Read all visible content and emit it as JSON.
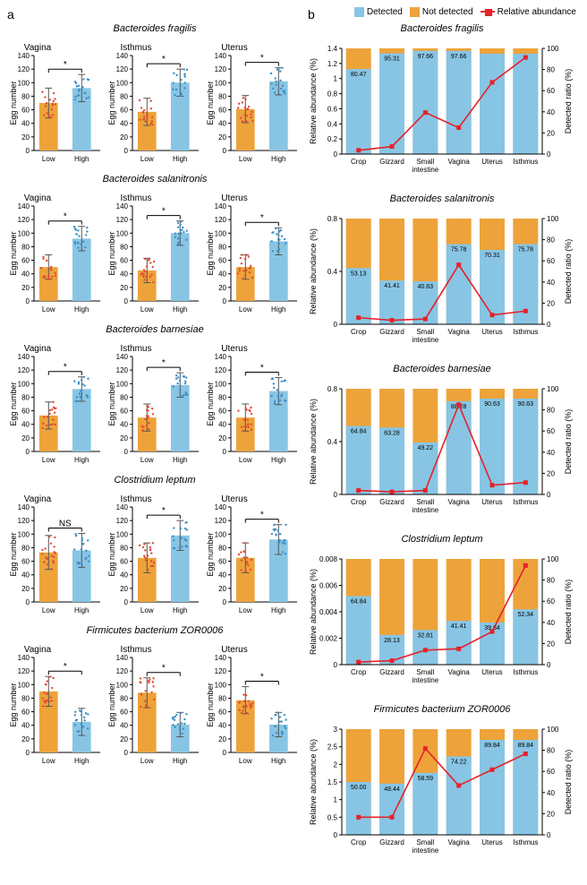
{
  "colors": {
    "low": "#eda33a",
    "high": "#88c5e4",
    "lowdot": "#e34a33",
    "highdot": "#3a8fc7",
    "detected": "#88c5e4",
    "notdetected": "#eda33a",
    "line": "#e62129",
    "axis": "#000000",
    "err": "#555555"
  },
  "legend": {
    "det": "Detected",
    "ndet": "Not detected",
    "rel": "Relative abundance"
  },
  "species": [
    {
      "name": "Bacteroides fragilis",
      "a": [
        {
          "sub": "Vagina",
          "sig": "*",
          "low": 70,
          "lowE": 22,
          "high": 92,
          "highE": 20
        },
        {
          "sub": "Isthmus",
          "sig": "*",
          "low": 57,
          "lowE": 20,
          "high": 100,
          "highE": 20
        },
        {
          "sub": "Uterus",
          "sig": "*",
          "low": 61,
          "lowE": 20,
          "high": 102,
          "highE": 20
        }
      ],
      "b": {
        "ylmax": 1.4,
        "ytick": 0.2,
        "cats": [
          "Crop",
          "Gizzard",
          "Small\nintestine",
          "Vagina",
          "Uterus",
          "Isthmus"
        ],
        "det": [
          80.47,
          95.31,
          97.66,
          97.66,
          95,
          95
        ],
        "detLabels": [
          "80.47",
          "95.31",
          "97.66",
          "97.66",
          "",
          ""
        ],
        "rel": [
          0.05,
          0.1,
          0.55,
          0.35,
          0.95,
          1.28
        ]
      }
    },
    {
      "name": "Bacteroides salanitronis",
      "a": [
        {
          "sub": "Vagina",
          "sig": "*",
          "low": 50,
          "lowE": 18,
          "high": 92,
          "highE": 18
        },
        {
          "sub": "Isthmus",
          "sig": "*",
          "low": 45,
          "lowE": 18,
          "high": 100,
          "highE": 18
        },
        {
          "sub": "Uterus",
          "sig": "*",
          "low": 50,
          "lowE": 18,
          "high": 88,
          "highE": 20
        }
      ],
      "b": {
        "ylmax": 0.8,
        "ytick": 0.4,
        "cats": [
          "Crop",
          "Gizzard",
          "Small\nintestine",
          "Vagina",
          "Uterus",
          "Isthmus"
        ],
        "det": [
          53.13,
          41.41,
          40.63,
          75.78,
          70.31,
          75.78
        ],
        "detLabels": [
          "53.13",
          "41.41",
          "40.63",
          "75.78",
          "70.31",
          "75.78"
        ],
        "rel": [
          0.05,
          0.03,
          0.04,
          0.45,
          0.07,
          0.1
        ]
      }
    },
    {
      "name": "Bacteroides barnesiae",
      "a": [
        {
          "sub": "Vagina",
          "sig": "*",
          "low": 53,
          "lowE": 20,
          "high": 92,
          "highE": 18
        },
        {
          "sub": "Isthmus",
          "sig": "*",
          "low": 50,
          "lowE": 20,
          "high": 98,
          "highE": 18
        },
        {
          "sub": "Uterus",
          "sig": "*",
          "low": 50,
          "lowE": 20,
          "high": 89,
          "highE": 20
        }
      ],
      "b": {
        "ylmax": 0.8,
        "ytick": 0.4,
        "cats": [
          "Crop",
          "Gizzard",
          "Small\nintestine",
          "Vagina",
          "Uterus",
          "Isthmus"
        ],
        "det": [
          64.84,
          63.28,
          49.22,
          88.28,
          90.63,
          90.63
        ],
        "detLabels": [
          "64.84",
          "63.28",
          "49.22",
          "88.28",
          "90.63",
          "90.63"
        ],
        "rel": [
          0.03,
          0.02,
          0.03,
          0.68,
          0.07,
          0.09
        ]
      }
    },
    {
      "name": "Clostridium leptum",
      "a": [
        {
          "sub": "Vagina",
          "sig": "NS",
          "low": 73,
          "lowE": 25,
          "high": 76,
          "highE": 25
        },
        {
          "sub": "Isthmus",
          "sig": "*",
          "low": 65,
          "lowE": 22,
          "high": 98,
          "highE": 22
        },
        {
          "sub": "Uterus",
          "sig": "*",
          "low": 65,
          "lowE": 22,
          "high": 92,
          "highE": 22
        }
      ],
      "b": {
        "ylmax": 0.008,
        "ytick": 0.002,
        "cats": [
          "Crop",
          "Gizzard",
          "Small\nintestine",
          "Vagina",
          "Uterus",
          "Isthmus"
        ],
        "det": [
          64.84,
          28.13,
          32.81,
          41.41,
          39.84,
          52.34
        ],
        "detLabels": [
          "64.84",
          "28.13",
          "32.81",
          "41.41",
          "39.84",
          "52.34"
        ],
        "rel": [
          0.0002,
          0.0003,
          0.0011,
          0.0012,
          0.0025,
          0.0075
        ]
      }
    },
    {
      "name": "Firmicutes bacterium ZOR0006",
      "a": [
        {
          "sub": "Vagina",
          "sig": "*",
          "low": 90,
          "lowE": 22,
          "high": 45,
          "highE": 20
        },
        {
          "sub": "Isthmus",
          "sig": "*",
          "low": 88,
          "lowE": 22,
          "high": 41,
          "highE": 18
        },
        {
          "sub": "Uterus",
          "sig": "*",
          "low": 77,
          "lowE": 20,
          "high": 41,
          "highE": 18
        }
      ],
      "b": {
        "ylmax": 3,
        "ytick": 0.5,
        "cats": [
          "Crop",
          "Gizzard",
          "Small\nintestine",
          "Vagina",
          "Uterus",
          "Isthmus"
        ],
        "det": [
          50.0,
          48.44,
          58.59,
          74.22,
          89.84,
          89.84
        ],
        "detLabels": [
          "50.00",
          "48.44",
          "58.59",
          "74.22",
          "89.84",
          "89.84"
        ],
        "rel": [
          0.5,
          0.5,
          2.45,
          1.4,
          1.85,
          2.3
        ]
      }
    }
  ],
  "axisA": {
    "yLabel": "Egg number",
    "yMax": 140,
    "yTick": 20,
    "xLow": "Low",
    "xHigh": "High"
  },
  "axisB": {
    "yL": "Relative abundance (%)",
    "yR": "Detected ratio (%)",
    "rMax": 100,
    "rTick": 20
  }
}
